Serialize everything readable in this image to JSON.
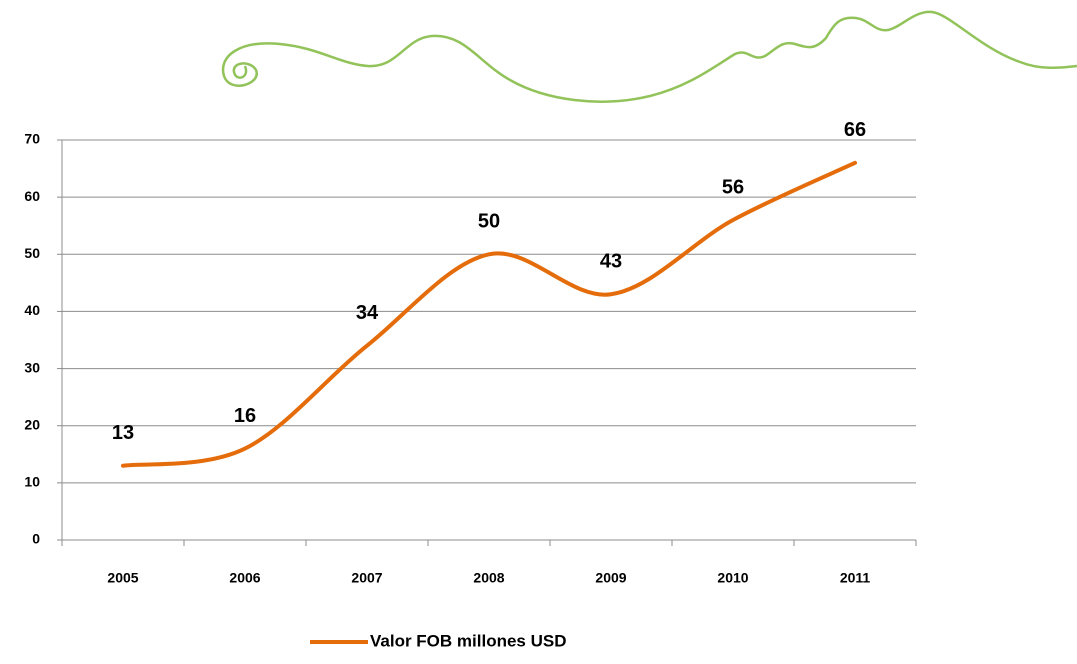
{
  "chart_data": {
    "type": "line",
    "categories": [
      "2005",
      "2006",
      "2007",
      "2008",
      "2009",
      "2010",
      "2011"
    ],
    "series": [
      {
        "name": "Valor FOB millones USD",
        "color": "#e46c0a",
        "values": [
          13,
          16,
          34,
          50,
          43,
          56,
          66
        ]
      }
    ],
    "ylim": [
      0,
      70
    ],
    "yticks": [
      0,
      10,
      20,
      30,
      40,
      50,
      60,
      70
    ],
    "grid": true,
    "smooth": true,
    "legend": "bottom"
  }
}
